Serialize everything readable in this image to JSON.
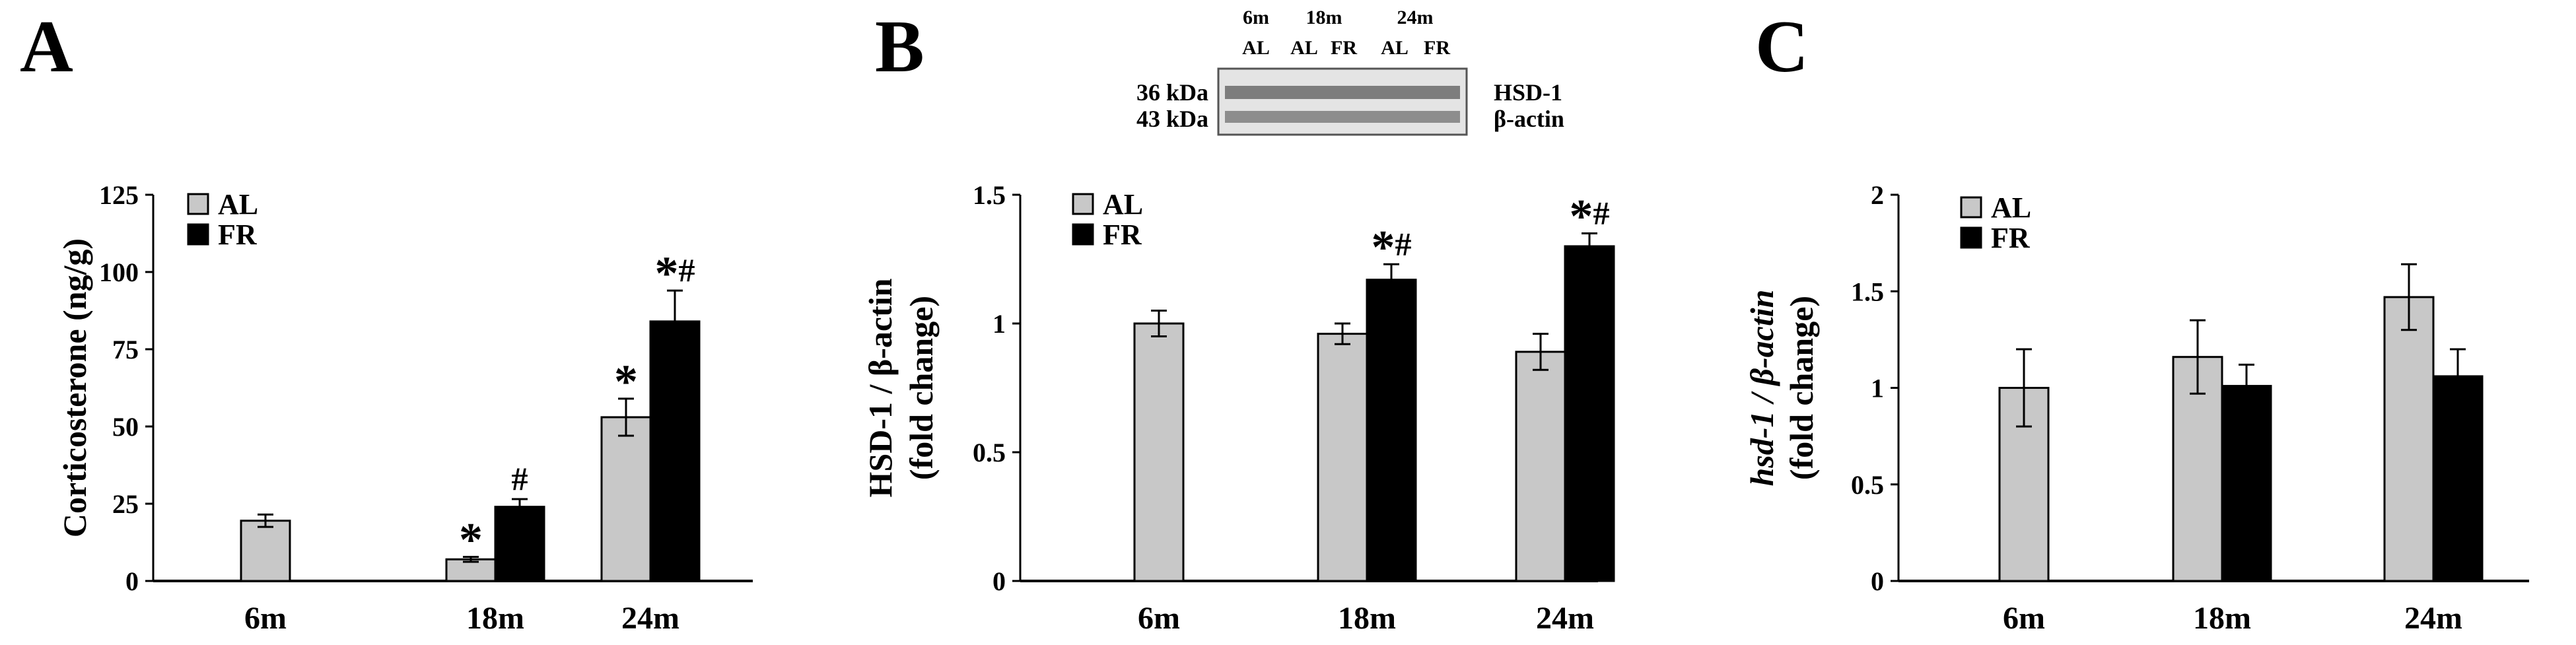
{
  "colors": {
    "AL": "#c8c8c8",
    "FR": "#000000",
    "axis": "#000000"
  },
  "chart_data": [
    {
      "panel": "A",
      "type": "bar",
      "categories": [
        "6m",
        "18m",
        "24m"
      ],
      "ylabel": "Corticosterone (ng/g)",
      "ylim": [
        0,
        125
      ],
      "yticks": [
        "0",
        "25",
        "50",
        "75",
        "100",
        "125"
      ],
      "legend": "top-left",
      "grid": false,
      "series": [
        {
          "name": "AL",
          "values": [
            19.5,
            7,
            53
          ],
          "errors": [
            2,
            0.8,
            6
          ],
          "sig": [
            "",
            "*",
            "*"
          ]
        },
        {
          "name": "FR",
          "values": [
            null,
            24,
            84
          ],
          "errors": [
            null,
            2.5,
            10
          ],
          "sig": [
            "",
            "#",
            "*#"
          ]
        }
      ]
    },
    {
      "panel": "B",
      "type": "bar",
      "categories": [
        "6m",
        "18m",
        "24m"
      ],
      "ylabel": "HSD-1 / β-actin",
      "ylabel2": "(fold change)",
      "ylim": [
        0,
        1.5
      ],
      "yticks": [
        "0",
        "0.5",
        "1",
        "1.5"
      ],
      "legend": "top-left",
      "grid": false,
      "series": [
        {
          "name": "AL",
          "values": [
            1.0,
            0.96,
            0.89
          ],
          "errors": [
            0.05,
            0.04,
            0.07
          ],
          "sig": [
            "",
            "",
            ""
          ]
        },
        {
          "name": "FR",
          "values": [
            null,
            1.17,
            1.3
          ],
          "errors": [
            null,
            0.06,
            0.05
          ],
          "sig": [
            "",
            "*#",
            "*#"
          ]
        }
      ],
      "blot": {
        "header_ages": [
          "6m",
          "18m",
          "24m"
        ],
        "header_groups": [
          "AL",
          "AL",
          "FR",
          "AL",
          "FR"
        ],
        "rows": [
          {
            "size": "36 kDa",
            "protein": "HSD-1"
          },
          {
            "size": "43 kDa",
            "protein": "β-actin"
          }
        ]
      }
    },
    {
      "panel": "C",
      "type": "bar",
      "categories": [
        "6m",
        "18m",
        "24m"
      ],
      "ylabel": "hsd-1 / β-actin",
      "ylabel2": "(fold change)",
      "ylim": [
        0,
        2
      ],
      "yticks": [
        "0",
        "0.5",
        "1",
        "1.5",
        "2"
      ],
      "legend": "top-left",
      "grid": false,
      "series": [
        {
          "name": "AL",
          "values": [
            1.0,
            1.16,
            1.47
          ],
          "errors": [
            0.2,
            0.19,
            0.17
          ],
          "sig": [
            "",
            "",
            ""
          ]
        },
        {
          "name": "FR",
          "values": [
            null,
            1.01,
            1.06
          ],
          "errors": [
            null,
            0.11,
            0.14
          ],
          "sig": [
            "",
            "",
            ""
          ]
        }
      ]
    }
  ]
}
